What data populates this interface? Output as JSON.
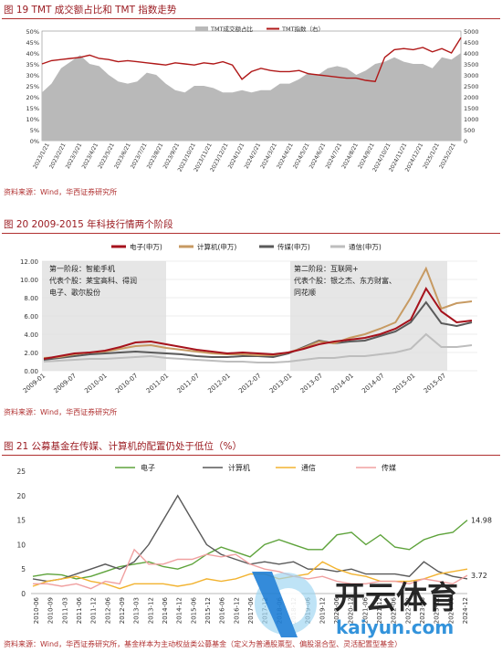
{
  "figures": {
    "fig19": {
      "title": "图 19 TMT 成交额占比和 TMT 指数走势",
      "source": "资料来源：Wind，华西证券研究所"
    },
    "fig20": {
      "title": "图 20 2009-2015 年科技行情两个阶段",
      "source": "资料来源：Wind，华西证券研究所"
    },
    "fig21": {
      "title": "图 21 公募基金在传媒、计算机的配置仍处于低位（%）",
      "source": "资料来源：Wind，华西证券研究所，基金样本为主动权益类公募基金（定义为普通股票型、偏股混合型、灵活配置型基金）"
    }
  },
  "watermark": {
    "brand": "开云体育",
    "url": "kaiyun.com"
  },
  "chart_data": [
    {
      "type": "area",
      "legend": [
        "TMT成交额占比",
        "TMT指数（右）"
      ],
      "legend_position": "top-right",
      "left_ylim": [
        0,
        50
      ],
      "right_ylim": [
        0,
        5000
      ],
      "left_ticks": [
        "0%",
        "5%",
        "10%",
        "15%",
        "20%",
        "25%",
        "30%",
        "35%",
        "40%",
        "45%",
        "50%"
      ],
      "right_ticks": [
        "0",
        "500",
        "1000",
        "1500",
        "2000",
        "2500",
        "3000",
        "3500",
        "4000",
        "4500",
        "5000"
      ],
      "x_ticks": [
        "2023/1/21",
        "2023/2/21",
        "2023/3/21",
        "2023/4/21",
        "2023/5/21",
        "2023/6/21",
        "2023/7/21",
        "2023/8/21",
        "2023/9/21",
        "2023/10/21",
        "2023/11/21",
        "2023/12/21",
        "2024/1/21",
        "2024/2/21",
        "2024/3/21",
        "2024/4/21",
        "2024/5/21",
        "2024/6/21",
        "2024/7/21",
        "2024/8/21",
        "2024/9/21",
        "2024/10/21",
        "2024/11/21",
        "2024/12/21",
        "2025/1/21",
        "2025/2/21"
      ],
      "series": [
        {
          "name": "TMT成交额占比",
          "color": "#b9b9b9",
          "values": [
            22,
            26,
            33,
            36,
            39,
            35,
            34,
            30,
            27,
            26,
            27,
            31,
            30,
            26,
            23,
            22,
            25,
            25,
            24,
            22,
            22,
            23,
            22,
            23,
            23,
            26,
            26,
            28,
            31,
            30,
            33,
            34,
            33,
            30,
            32,
            35,
            36,
            38,
            36,
            35,
            35,
            33,
            38,
            37,
            40
          ]
        },
        {
          "name": "TMT指数（右）",
          "color": "#b01818",
          "values": [
            3500,
            3650,
            3700,
            3750,
            3800,
            3900,
            3750,
            3700,
            3600,
            3650,
            3600,
            3550,
            3500,
            3450,
            3550,
            3500,
            3450,
            3550,
            3500,
            3600,
            3450,
            2800,
            3150,
            3300,
            3200,
            3150,
            3150,
            3200,
            3050,
            3000,
            2950,
            2900,
            2850,
            2850,
            2750,
            2700,
            3800,
            4150,
            4200,
            4150,
            4250,
            4050,
            4200,
            4000,
            4700
          ]
        }
      ]
    },
    {
      "type": "line",
      "ylim": [
        0,
        12
      ],
      "y_ticks": [
        "0.00",
        "2.00",
        "4.00",
        "6.00",
        "8.00",
        "10.00",
        "12.00"
      ],
      "x_ticks": [
        "2009-01",
        "2009-07",
        "2010-01",
        "2010-07",
        "2011-01",
        "2011-07",
        "2012-01",
        "2012-07",
        "2013-01",
        "2013-07",
        "2014-01",
        "2014-07",
        "2015-01",
        "2015-07"
      ],
      "legend_position": "top",
      "phase_labels": [
        {
          "lines": [
            "第一阶段：智能手机",
            "代表个股：莱宝高科、得润",
            "电子、歌尔股份"
          ]
        },
        {
          "lines": [
            "第二阶段：互联网+",
            "代表个股：银之杰、东方财富、",
            "同花顺"
          ]
        }
      ],
      "series": [
        {
          "name": "电子(申万)",
          "color": "#a6121c",
          "values": [
            1.3,
            1.6,
            1.9,
            2.0,
            2.2,
            2.6,
            3.1,
            3.2,
            2.9,
            2.6,
            2.3,
            2.1,
            1.9,
            2.0,
            1.9,
            1.8,
            2.0,
            2.4,
            2.9,
            3.2,
            3.4,
            3.6,
            4.0,
            4.6,
            5.6,
            9.0,
            6.5,
            5.3,
            5.5
          ]
        },
        {
          "name": "计算机(申万)",
          "color": "#c79a62",
          "values": [
            1.4,
            1.5,
            1.8,
            2.0,
            2.1,
            2.4,
            2.7,
            2.8,
            2.5,
            2.3,
            2.1,
            1.9,
            1.8,
            1.8,
            1.7,
            1.7,
            2.0,
            2.5,
            3.2,
            3.0,
            3.6,
            4.0,
            4.6,
            5.3,
            8.0,
            11.2,
            6.8,
            7.4,
            7.6
          ]
        },
        {
          "name": "传媒(申万)",
          "color": "#5a5a5a",
          "values": [
            1.2,
            1.4,
            1.6,
            1.8,
            1.9,
            2.0,
            2.1,
            2.0,
            1.9,
            1.8,
            1.6,
            1.5,
            1.5,
            1.6,
            1.6,
            1.5,
            1.9,
            2.6,
            3.3,
            3.0,
            3.2,
            3.3,
            3.8,
            4.3,
            5.3,
            7.5,
            5.2,
            4.9,
            5.3
          ]
        },
        {
          "name": "通信(申万)",
          "color": "#bdbdbd",
          "values": [
            1.0,
            1.1,
            1.2,
            1.3,
            1.3,
            1.4,
            1.5,
            1.6,
            1.4,
            1.3,
            1.2,
            1.1,
            1.0,
            1.0,
            0.9,
            0.9,
            1.0,
            1.2,
            1.4,
            1.4,
            1.6,
            1.6,
            1.8,
            2.0,
            2.4,
            4.0,
            2.6,
            2.6,
            2.8
          ]
        }
      ]
    },
    {
      "type": "line",
      "ylim": [
        0,
        25
      ],
      "y_ticks": [
        "0",
        "5",
        "10",
        "15",
        "20",
        "25"
      ],
      "x_ticks": [
        "2010-06",
        "2010-09",
        "2011-03",
        "2011-06",
        "2011-12",
        "2012-06",
        "2012-09",
        "2013-03",
        "2013-12",
        "2014-06",
        "2014-12",
        "2015-06",
        "2015-12",
        "2016-06",
        "2016-12",
        "2017-06",
        "2017-12",
        "2018-06",
        "2018-12",
        "2019-06",
        "2019-12",
        "2020-06",
        "2020-12",
        "2021-06",
        "2021-12",
        "2022-06",
        "2022-12",
        "2023-06",
        "2023-12",
        "2024-06",
        "2024-12"
      ],
      "legend_position": "top",
      "end_labels": {
        "electronics": "14.98",
        "media": "3.72"
      },
      "series": [
        {
          "name": "电子",
          "color": "#5ea33b",
          "values": [
            3.5,
            4.0,
            3.8,
            3.0,
            3.5,
            4.5,
            5.5,
            6.0,
            6.5,
            5.5,
            5.0,
            6.0,
            8.0,
            9.5,
            8.5,
            7.5,
            10.0,
            11.0,
            10.0,
            9.0,
            9.0,
            12.0,
            12.5,
            10.0,
            12.0,
            9.5,
            9.0,
            11.0,
            12.0,
            12.5,
            15.0
          ]
        },
        {
          "name": "计算机",
          "color": "#595959",
          "values": [
            3.0,
            2.5,
            3.0,
            4.0,
            5.0,
            6.0,
            5.0,
            6.5,
            10.0,
            15.0,
            20.0,
            15.0,
            10.0,
            8.0,
            7.0,
            6.0,
            6.5,
            6.0,
            6.5,
            5.0,
            5.0,
            4.5,
            5.0,
            4.0,
            4.0,
            4.0,
            3.5,
            6.5,
            4.5,
            3.5,
            3.0
          ]
        },
        {
          "name": "通信",
          "color": "#f2b330",
          "values": [
            1.5,
            2.5,
            3.0,
            3.5,
            2.5,
            2.0,
            1.0,
            2.0,
            2.0,
            2.0,
            1.5,
            2.0,
            3.0,
            2.5,
            3.0,
            4.0,
            4.0,
            3.0,
            3.5,
            4.0,
            6.5,
            5.0,
            4.0,
            3.5,
            2.5,
            2.5,
            2.5,
            3.0,
            4.0,
            4.5,
            5.0
          ]
        },
        {
          "name": "传媒",
          "color": "#f0a0a0",
          "values": [
            2.0,
            2.0,
            1.5,
            2.0,
            1.0,
            2.5,
            2.0,
            9.0,
            6.0,
            6.0,
            7.0,
            7.0,
            8.0,
            7.5,
            8.0,
            6.0,
            5.0,
            4.5,
            3.5,
            3.0,
            3.5,
            2.5,
            2.0,
            2.0,
            2.5,
            2.5,
            2.0,
            3.0,
            2.5,
            2.0,
            3.72
          ]
        }
      ]
    }
  ]
}
